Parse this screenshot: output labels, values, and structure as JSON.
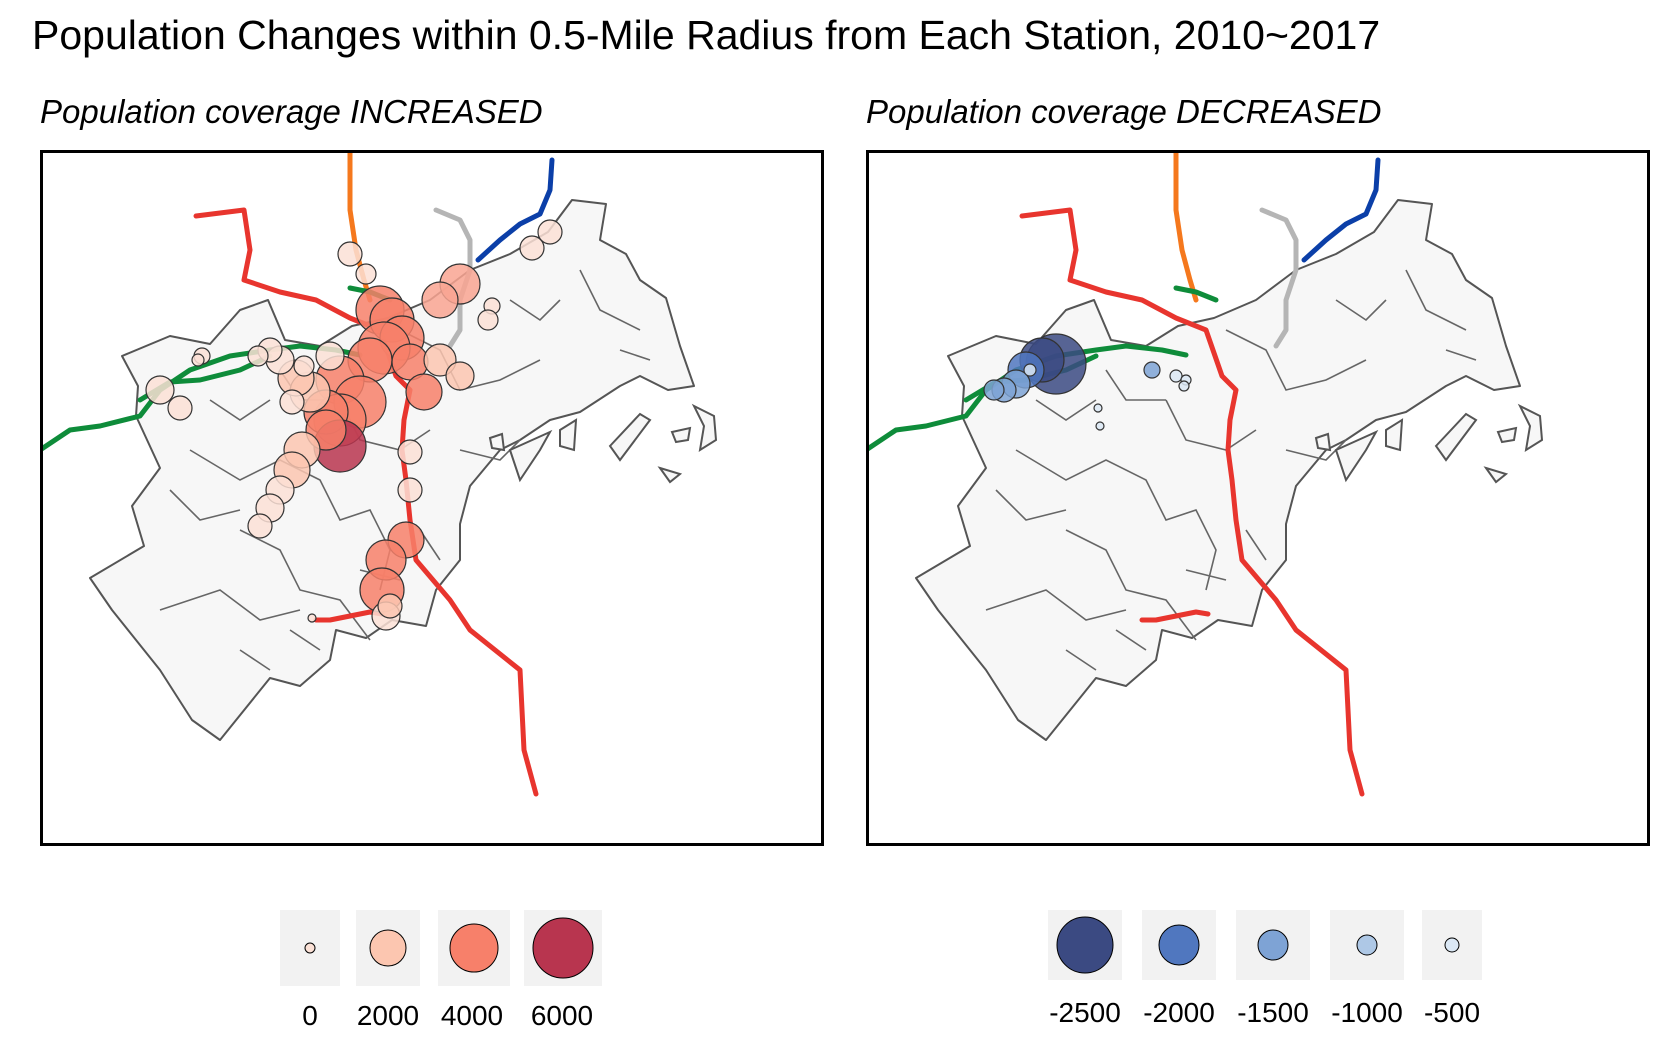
{
  "title": "Population Changes within 0.5-Mile Radius from Each Station, 2010~2017",
  "panels": [
    {
      "title": "Population coverage INCREASED"
    },
    {
      "title": "Population coverage DECREASED"
    }
  ],
  "legend_increase": {
    "labels": [
      "0",
      "2000",
      "4000",
      "6000"
    ],
    "colors": [
      "#fbe1d6",
      "#fcc6b0",
      "#f7806a",
      "#b8354f"
    ]
  },
  "legend_decrease": {
    "labels": [
      "-2500",
      "-2000",
      "-1500",
      "-1000",
      "-500"
    ],
    "colors": [
      "#3b4a82",
      "#5077bf",
      "#7ea3d5",
      "#aec8e6",
      "#dbe8f5"
    ]
  },
  "lines": {
    "red": "#e8352e",
    "orange": "#f5781d",
    "green": "#0e8c3a",
    "blue": "#0b3fa8",
    "silver": "#b5b5b5"
  }
}
